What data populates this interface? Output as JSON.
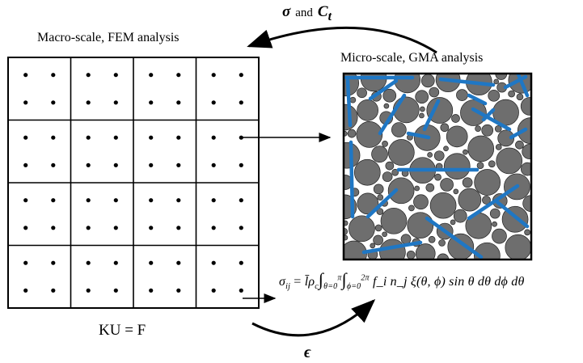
{
  "macro_label": "Macro-scale, FEM analysis",
  "micro_label": "Micro-scale, GMA analysis",
  "ku_equation": "KU = F",
  "top_arrow": {
    "sigma": "σ",
    "and": "and",
    "ct": "C",
    "ct_sub": "t"
  },
  "bottom_arrow": {
    "epsilon": "ϵ"
  },
  "formula": {
    "lhs": "σ",
    "lhs_sub": "ij",
    "eq": "=",
    "rho_bar": "l̄ρ",
    "rho_sub": "c",
    "int1_upper": "π",
    "int1_lower": "θ=0",
    "int2_upper": "2π",
    "int2_lower": "ϕ=0",
    "integrand": "f_i n_j ξ(θ, ϕ) sin θ dθ dϕ dθ"
  },
  "colors": {
    "fiber": "#1f77c4",
    "particle": "#6e6e6e",
    "grid": "#000000"
  },
  "grid": {
    "rows": 4,
    "cols": 4
  }
}
